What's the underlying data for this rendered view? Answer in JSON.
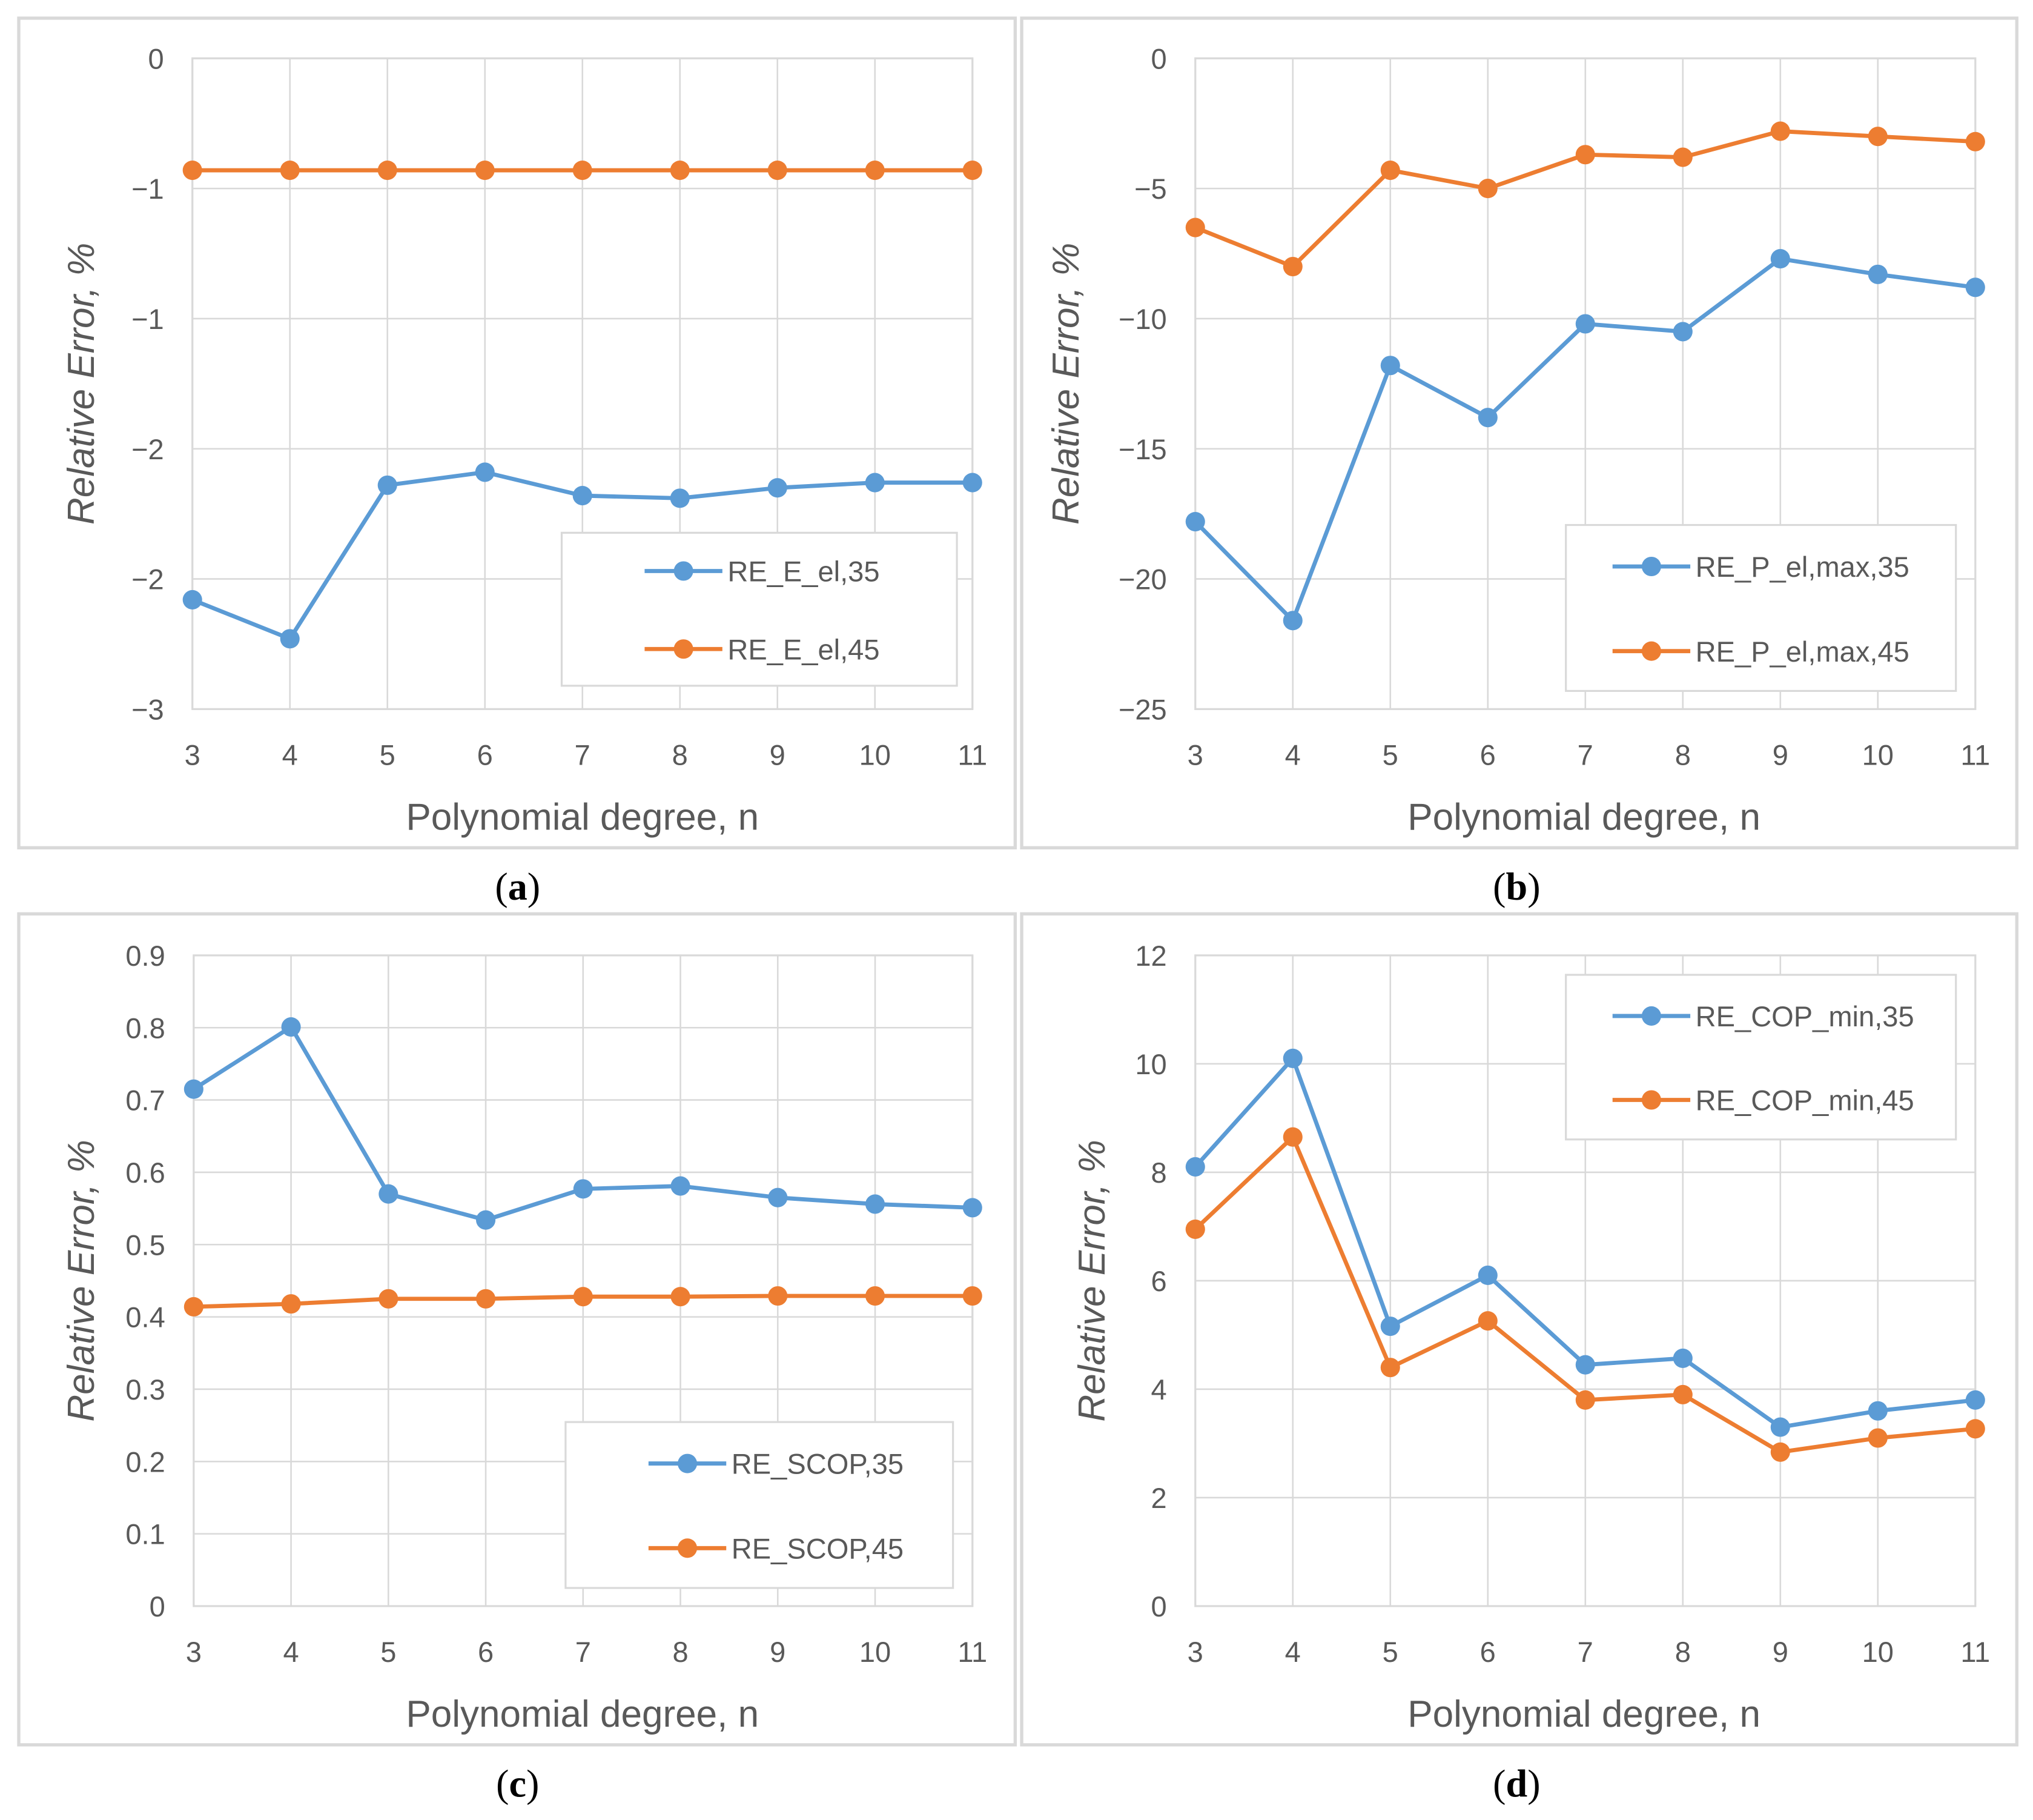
{
  "colors": {
    "series35": "#5b9bd5",
    "series45": "#ed7d31",
    "grid": "#d9d9d9",
    "frame": "#d9d9d9"
  },
  "chart_data": [
    {
      "type": "line",
      "caption": "(a)",
      "xlabel": "Polynomial degree, n",
      "ylabel": "Relative Error, %",
      "x": [
        3,
        4,
        5,
        6,
        7,
        8,
        9,
        10,
        11
      ],
      "ylim": [
        -2.5,
        0
      ],
      "yticks": [
        0,
        -0.5,
        -1,
        -1.5,
        -2,
        -2.5
      ],
      "ytick_labels": [
        "0",
        "−1",
        "−1",
        "−2",
        "−2",
        "−3"
      ],
      "grid": true,
      "legend": "bottom-right",
      "series": [
        {
          "name": "RE_E_el,35",
          "values": [
            -2.08,
            -2.23,
            -1.64,
            -1.59,
            -1.68,
            -1.69,
            -1.65,
            -1.63,
            -1.63
          ]
        },
        {
          "name": "RE_E_el,45",
          "values": [
            -0.43,
            -0.43,
            -0.43,
            -0.43,
            -0.43,
            -0.43,
            -0.43,
            -0.43,
            -0.43
          ]
        }
      ]
    },
    {
      "type": "line",
      "caption": "(b)",
      "xlabel": "Polynomial degree, n",
      "ylabel": "Relative Error, %",
      "x": [
        3,
        4,
        5,
        6,
        7,
        8,
        9,
        10,
        11
      ],
      "ylim": [
        -25,
        0
      ],
      "yticks": [
        0,
        -5,
        -10,
        -15,
        -20,
        -25
      ],
      "ytick_labels": [
        "0",
        "−5",
        "−10",
        "−15",
        "−20",
        "−25"
      ],
      "grid": true,
      "legend": "bottom-right",
      "series": [
        {
          "name": "RE_P_el,max,35",
          "values": [
            -17.8,
            -21.6,
            -11.8,
            -13.8,
            -10.2,
            -10.5,
            -7.7,
            -8.3,
            -8.8
          ]
        },
        {
          "name": "RE_P_el,max,45",
          "values": [
            -6.5,
            -8.0,
            -4.3,
            -5.0,
            -3.7,
            -3.8,
            -2.8,
            -3.0,
            -3.2
          ]
        }
      ]
    },
    {
      "type": "line",
      "caption": "(c)",
      "xlabel": "Polynomial degree, n",
      "ylabel": "Relative Error, %",
      "x": [
        3,
        4,
        5,
        6,
        7,
        8,
        9,
        10,
        11
      ],
      "ylim": [
        0,
        0.9
      ],
      "yticks": [
        0,
        0.1,
        0.2,
        0.3,
        0.4,
        0.5,
        0.6,
        0.7,
        0.8,
        0.9
      ],
      "ytick_labels": [
        "0",
        "0.1",
        "0.2",
        "0.3",
        "0.4",
        "0.5",
        "0.6",
        "0.7",
        "0.8",
        "0.9"
      ],
      "grid": true,
      "legend": "bottom-right",
      "series": [
        {
          "name": "RE_SCOP,35",
          "values": [
            0.715,
            0.801,
            0.57,
            0.534,
            0.577,
            0.581,
            0.565,
            0.556,
            0.551
          ]
        },
        {
          "name": "RE_SCOP,45",
          "values": [
            0.414,
            0.418,
            0.425,
            0.425,
            0.428,
            0.428,
            0.429,
            0.429,
            0.429
          ]
        }
      ]
    },
    {
      "type": "line",
      "caption": "(d)",
      "xlabel": "Polynomial degree, n",
      "ylabel": "Relative Error, %",
      "x": [
        3,
        4,
        5,
        6,
        7,
        8,
        9,
        10,
        11
      ],
      "ylim": [
        0,
        12
      ],
      "yticks": [
        0,
        2,
        4,
        6,
        8,
        10,
        12
      ],
      "ytick_labels": [
        "0",
        "2",
        "4",
        "6",
        "8",
        "10",
        "12"
      ],
      "grid": true,
      "legend": "top-right",
      "series": [
        {
          "name": "RE_COP_min,35",
          "values": [
            8.1,
            10.1,
            5.16,
            6.1,
            4.45,
            4.57,
            3.3,
            3.6,
            3.8
          ]
        },
        {
          "name": "RE_COP_min,45",
          "values": [
            6.95,
            8.65,
            4.4,
            5.26,
            3.8,
            3.9,
            2.84,
            3.1,
            3.27
          ]
        }
      ]
    }
  ]
}
